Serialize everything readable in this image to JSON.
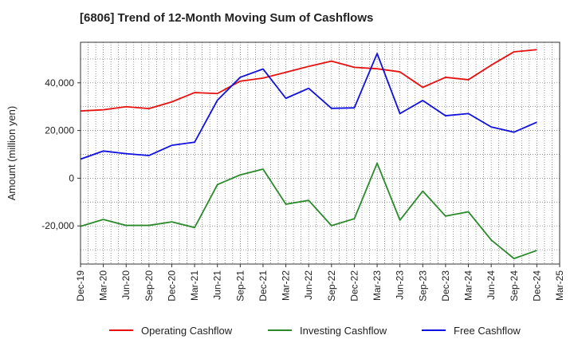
{
  "chart_data": {
    "type": "line",
    "title": "[6806]  Trend of 12-Month Moving Sum of Cashflows",
    "xlabel": "",
    "ylabel": "Amount (million yen)",
    "ylim": [
      -36000,
      57000
    ],
    "yticks": [
      -20000,
      0,
      20000,
      40000
    ],
    "ytick_labels": [
      "-20,000",
      "0",
      "20,000",
      "40,000"
    ],
    "grid": true,
    "legend_position": "bottom",
    "categories": [
      "Dec-19",
      "Mar-20",
      "Jun-20",
      "Sep-20",
      "Dec-20",
      "Mar-21",
      "Jun-21",
      "Sep-21",
      "Dec-21",
      "Mar-22",
      "Jun-22",
      "Sep-22",
      "Dec-22",
      "Mar-23",
      "Jun-23",
      "Sep-23",
      "Dec-23",
      "Mar-24",
      "Jun-24",
      "Sep-24",
      "Dec-24",
      "Mar-25"
    ],
    "series": [
      {
        "name": "Operating Cashflow",
        "color": "#e8100f",
        "values": [
          28200,
          28700,
          30000,
          29200,
          32000,
          35900,
          35500,
          40700,
          42000,
          44400,
          46900,
          49100,
          46500,
          45900,
          44600,
          38100,
          42300,
          41300,
          47400,
          53000,
          53900,
          null
        ]
      },
      {
        "name": "Investing Cashflow",
        "color": "#2a8a2a",
        "values": [
          -20200,
          -17300,
          -19800,
          -19800,
          -18300,
          -20700,
          -2700,
          1400,
          3800,
          -10900,
          -9300,
          -19900,
          -17000,
          6300,
          -17600,
          -5400,
          -15900,
          -14100,
          -25900,
          -33700,
          -30300,
          null
        ]
      },
      {
        "name": "Free Cashflow",
        "color": "#1010e0",
        "values": [
          8000,
          11400,
          10300,
          9500,
          13800,
          15100,
          32700,
          42300,
          45800,
          33500,
          37700,
          29300,
          29500,
          52300,
          27100,
          32600,
          26200,
          27100,
          21500,
          19300,
          23500,
          null
        ]
      }
    ]
  }
}
